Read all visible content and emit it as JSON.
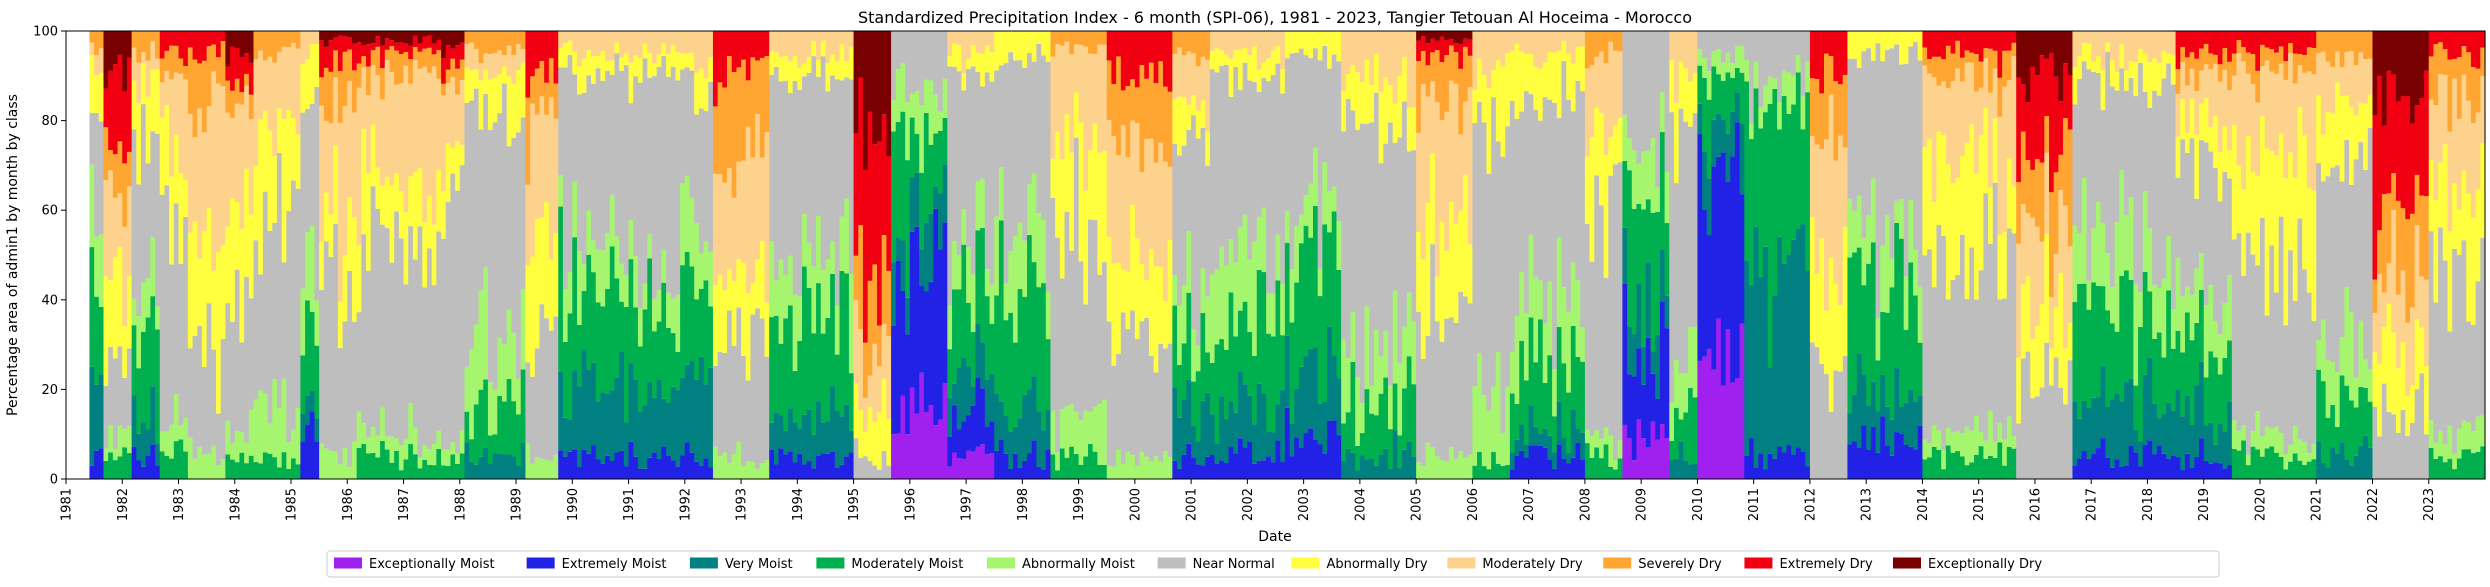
{
  "chart_data": {
    "type": "bar",
    "stacked": true,
    "title": "Standardized Precipitation Index - 6 month (SPI-06), 1981 - 2023, Tangier Tetouan Al Hoceima - Morocco",
    "xlabel": "Date",
    "ylabel": "Percentage area of admin1 by month by class",
    "xlim": [
      "1981-01",
      "2023-12"
    ],
    "ylim": [
      0,
      100
    ],
    "y_ticks": [
      0,
      20,
      40,
      60,
      80,
      100
    ],
    "x_ticks": [
      "1981",
      "1982",
      "1983",
      "1984",
      "1985",
      "1986",
      "1987",
      "1988",
      "1989",
      "1990",
      "1991",
      "1992",
      "1993",
      "1994",
      "1995",
      "1996",
      "1997",
      "1998",
      "1999",
      "2000",
      "2001",
      "2002",
      "2003",
      "2004",
      "2005",
      "2006",
      "2007",
      "2008",
      "2009",
      "2010",
      "2011",
      "2012",
      "2013",
      "2014",
      "2015",
      "2016",
      "2017",
      "2018",
      "2019",
      "2020",
      "2021",
      "2022",
      "2023"
    ],
    "grid": false,
    "legend_position": "bottom-center",
    "classes": [
      {
        "name": "Exceptionally Moist",
        "color": "#a020f0"
      },
      {
        "name": "Extremely Moist",
        "color": "#2222e6"
      },
      {
        "name": "Very Moist",
        "color": "#008080"
      },
      {
        "name": "Moderately Moist",
        "color": "#00b04f"
      },
      {
        "name": "Abnormally Moist",
        "color": "#a6f56e"
      },
      {
        "name": "Near Normal",
        "color": "#bebebe"
      },
      {
        "name": "Abnormally Dry",
        "color": "#ffff40"
      },
      {
        "name": "Moderately Dry",
        "color": "#fcd28c"
      },
      {
        "name": "Severely Dry",
        "color": "#ffa532"
      },
      {
        "name": "Extremely Dry",
        "color": "#f00010"
      },
      {
        "name": "Exceptionally Dry",
        "color": "#780000"
      }
    ],
    "data_note_order": "each month entry: percentage of area in [Exceptionally Moist, Extremely Moist, Very Moist, Moderately Moist, Abnormally Moist, Near Normal, Abnormally Dry, Moderately Dry, Severely Dry, Extremely Dry, Exceptionally Dry]",
    "periods": [
      {
        "start": "1981-06",
        "end": "1981-08",
        "mix": [
          0,
          5,
          15,
          20,
          15,
          25,
          10,
          5,
          5,
          0,
          0
        ]
      },
      {
        "start": "1981-09",
        "end": "1982-02",
        "mix": [
          0,
          0,
          0,
          5,
          5,
          15,
          20,
          20,
          10,
          15,
          10
        ]
      },
      {
        "start": "1982-03",
        "end": "1982-08",
        "mix": [
          0,
          5,
          10,
          20,
          10,
          35,
          10,
          5,
          5,
          0,
          0
        ]
      },
      {
        "start": "1982-09",
        "end": "1983-02",
        "mix": [
          0,
          0,
          0,
          5,
          5,
          45,
          15,
          15,
          5,
          5,
          0
        ]
      },
      {
        "start": "1983-03",
        "end": "1983-10",
        "mix": [
          0,
          0,
          0,
          0,
          5,
          25,
          25,
          30,
          10,
          5,
          0
        ]
      },
      {
        "start": "1983-11",
        "end": "1984-04",
        "mix": [
          0,
          0,
          0,
          5,
          5,
          30,
          25,
          20,
          5,
          5,
          5
        ]
      },
      {
        "start": "1984-05",
        "end": "1985-02",
        "mix": [
          0,
          0,
          0,
          5,
          10,
          45,
          20,
          15,
          5,
          0,
          0
        ]
      },
      {
        "start": "1985-03",
        "end": "1985-06",
        "mix": [
          0,
          10,
          5,
          15,
          15,
          40,
          10,
          5,
          0,
          0,
          0
        ]
      },
      {
        "start": "1985-07",
        "end": "1986-02",
        "mix": [
          0,
          0,
          0,
          0,
          5,
          40,
          15,
          25,
          8,
          5,
          2
        ]
      },
      {
        "start": "1986-03",
        "end": "1987-08",
        "mix": [
          0,
          0,
          0,
          5,
          5,
          40,
          15,
          25,
          5,
          3,
          2
        ]
      },
      {
        "start": "1987-09",
        "end": "1988-01",
        "mix": [
          0,
          0,
          0,
          5,
          5,
          50,
          10,
          15,
          5,
          5,
          5
        ]
      },
      {
        "start": "1988-02",
        "end": "1989-02",
        "mix": [
          0,
          0,
          5,
          10,
          15,
          50,
          10,
          5,
          5,
          0,
          0
        ]
      },
      {
        "start": "1989-03",
        "end": "1989-09",
        "mix": [
          0,
          0,
          0,
          0,
          5,
          30,
          20,
          25,
          10,
          10,
          0
        ]
      },
      {
        "start": "1989-10",
        "end": "1992-06",
        "mix": [
          0,
          5,
          15,
          20,
          10,
          40,
          5,
          5,
          0,
          0,
          0
        ]
      },
      {
        "start": "1992-07",
        "end": "1993-02",
        "mix": [
          0,
          0,
          0,
          0,
          5,
          25,
          15,
          25,
          20,
          10,
          0
        ]
      },
      {
        "start": "1993-03",
        "end": "1993-06",
        "mix": [
          0,
          0,
          0,
          0,
          5,
          30,
          15,
          30,
          15,
          5,
          0
        ]
      },
      {
        "start": "1993-07",
        "end": "1994-12",
        "mix": [
          0,
          5,
          10,
          20,
          15,
          40,
          5,
          5,
          0,
          0,
          0
        ]
      },
      {
        "start": "1995-01",
        "end": "1995-08",
        "mix": [
          0,
          0,
          0,
          0,
          0,
          5,
          10,
          15,
          15,
          35,
          20
        ]
      },
      {
        "start": "1995-09",
        "end": "1996-08",
        "mix": [
          15,
          30,
          10,
          20,
          10,
          15,
          0,
          0,
          0,
          0,
          0
        ]
      },
      {
        "start": "1996-09",
        "end": "1997-06",
        "mix": [
          5,
          10,
          10,
          20,
          10,
          35,
          5,
          5,
          0,
          0,
          0
        ]
      },
      {
        "start": "1997-07",
        "end": "1998-06",
        "mix": [
          0,
          5,
          10,
          30,
          15,
          35,
          5,
          0,
          0,
          0,
          0
        ]
      },
      {
        "start": "1998-07",
        "end": "1999-06",
        "mix": [
          0,
          0,
          0,
          5,
          10,
          40,
          20,
          20,
          5,
          0,
          0
        ]
      },
      {
        "start": "1999-07",
        "end": "2000-08",
        "mix": [
          0,
          0,
          0,
          0,
          5,
          25,
          20,
          25,
          15,
          10,
          0
        ]
      },
      {
        "start": "2000-09",
        "end": "2001-04",
        "mix": [
          0,
          5,
          10,
          15,
          10,
          35,
          10,
          10,
          5,
          0,
          0
        ]
      },
      {
        "start": "2001-05",
        "end": "2002-08",
        "mix": [
          0,
          5,
          10,
          20,
          15,
          40,
          5,
          5,
          0,
          0,
          0
        ]
      },
      {
        "start": "2002-09",
        "end": "2003-08",
        "mix": [
          0,
          10,
          15,
          25,
          10,
          35,
          5,
          0,
          0,
          0,
          0
        ]
      },
      {
        "start": "2003-09",
        "end": "2004-12",
        "mix": [
          0,
          0,
          5,
          10,
          15,
          50,
          10,
          10,
          0,
          0,
          0
        ]
      },
      {
        "start": "2005-01",
        "end": "2005-12",
        "mix": [
          0,
          0,
          0,
          0,
          5,
          35,
          20,
          25,
          10,
          3,
          2
        ]
      },
      {
        "start": "2006-01",
        "end": "2006-08",
        "mix": [
          0,
          0,
          0,
          5,
          15,
          55,
          15,
          10,
          0,
          0,
          0
        ]
      },
      {
        "start": "2006-09",
        "end": "2007-12",
        "mix": [
          0,
          5,
          5,
          15,
          15,
          45,
          10,
          5,
          0,
          0,
          0
        ]
      },
      {
        "start": "2008-01",
        "end": "2008-08",
        "mix": [
          0,
          0,
          0,
          5,
          5,
          50,
          20,
          15,
          5,
          0,
          0
        ]
      },
      {
        "start": "2008-09",
        "end": "2009-06",
        "mix": [
          10,
          20,
          10,
          25,
          10,
          25,
          0,
          0,
          0,
          0,
          0
        ]
      },
      {
        "start": "2009-07",
        "end": "2009-12",
        "mix": [
          0,
          0,
          5,
          10,
          10,
          55,
          10,
          10,
          0,
          0,
          0
        ]
      },
      {
        "start": "2010-01",
        "end": "2010-10",
        "mix": [
          25,
          45,
          10,
          10,
          5,
          5,
          0,
          0,
          0,
          0,
          0
        ]
      },
      {
        "start": "2010-11",
        "end": "2011-12",
        "mix": [
          0,
          5,
          40,
          40,
          5,
          10,
          0,
          0,
          0,
          0,
          0
        ]
      },
      {
        "start": "2012-01",
        "end": "2012-08",
        "mix": [
          0,
          0,
          0,
          0,
          0,
          25,
          25,
          25,
          15,
          10,
          0
        ]
      },
      {
        "start": "2012-09",
        "end": "2013-12",
        "mix": [
          0,
          10,
          10,
          25,
          10,
          40,
          5,
          0,
          0,
          0,
          0
        ]
      },
      {
        "start": "2014-01",
        "end": "2015-08",
        "mix": [
          0,
          0,
          0,
          5,
          5,
          40,
          20,
          20,
          5,
          5,
          0
        ]
      },
      {
        "start": "2015-09",
        "end": "2016-08",
        "mix": [
          0,
          0,
          0,
          0,
          0,
          20,
          15,
          20,
          15,
          20,
          10
        ]
      },
      {
        "start": "2016-09",
        "end": "2018-06",
        "mix": [
          0,
          5,
          10,
          20,
          15,
          40,
          5,
          5,
          0,
          0,
          0
        ]
      },
      {
        "start": "2018-07",
        "end": "2019-06",
        "mix": [
          0,
          5,
          10,
          15,
          10,
          30,
          10,
          10,
          5,
          5,
          0
        ]
      },
      {
        "start": "2019-07",
        "end": "2020-12",
        "mix": [
          0,
          0,
          0,
          5,
          5,
          35,
          25,
          20,
          5,
          5,
          0
        ]
      },
      {
        "start": "2021-01",
        "end": "2021-12",
        "mix": [
          0,
          0,
          5,
          10,
          10,
          45,
          15,
          10,
          5,
          0,
          0
        ]
      },
      {
        "start": "2022-01",
        "end": "2022-12",
        "mix": [
          0,
          0,
          0,
          0,
          0,
          15,
          15,
          15,
          15,
          25,
          15
        ]
      },
      {
        "start": "2023-01",
        "end": "2023-12",
        "mix": [
          0,
          0,
          0,
          5,
          5,
          35,
          20,
          20,
          10,
          5,
          0
        ]
      }
    ]
  }
}
